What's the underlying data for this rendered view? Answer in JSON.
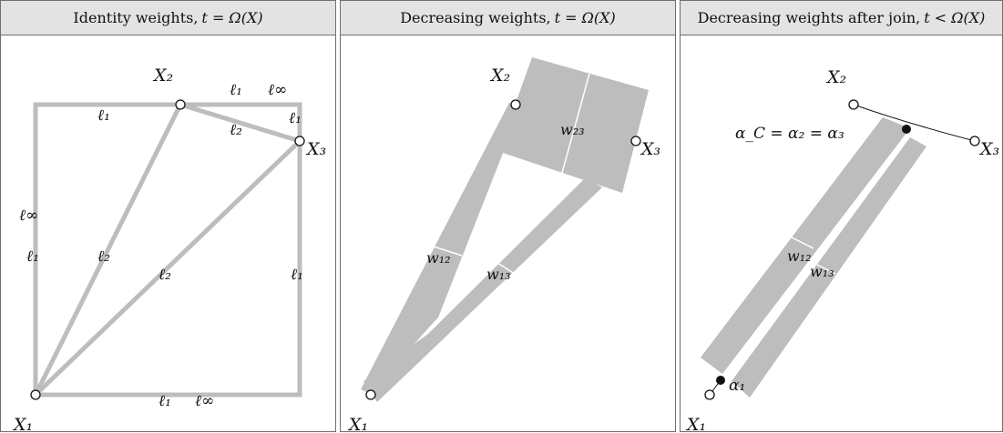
{
  "panels": [
    {
      "title_text": "Identity weights, ",
      "title_math": "t = Ω(X)",
      "points": {
        "x1": "X₁",
        "x2": "X₂",
        "x3": "X₃"
      },
      "edge_labels": [
        "ℓ₁",
        "ℓ₁",
        "ℓ∞",
        "ℓ₂",
        "ℓ₁",
        "ℓ∞",
        "ℓ₁",
        "ℓ₂",
        "ℓ₂",
        "ℓ₁",
        "ℓ₁",
        "ℓ∞"
      ]
    },
    {
      "title_text": "Decreasing weights, ",
      "title_math": "t = Ω(X)",
      "points": {
        "x1": "X₁",
        "x2": "X₂",
        "x3": "X₃"
      },
      "weight_labels": {
        "w12": "w₁₂",
        "w13": "w₁₃",
        "w23": "w₂₃"
      }
    },
    {
      "title_text": "Decreasing weights after join, ",
      "title_math": "t < Ω(X)",
      "points": {
        "x1": "X₁",
        "x2": "X₂",
        "x3": "X₃"
      },
      "weight_labels": {
        "w12": "w₁₂",
        "w13": "w₁₃"
      },
      "alpha_labels": {
        "alpha1": "α₁",
        "alpha_join": "α_C = α₂ = α₃"
      }
    }
  ],
  "colors": {
    "band": "#bdbdbd",
    "edge": "#bdbdbd",
    "header": "#e3e3e3",
    "border": "#6f6f6f"
  }
}
